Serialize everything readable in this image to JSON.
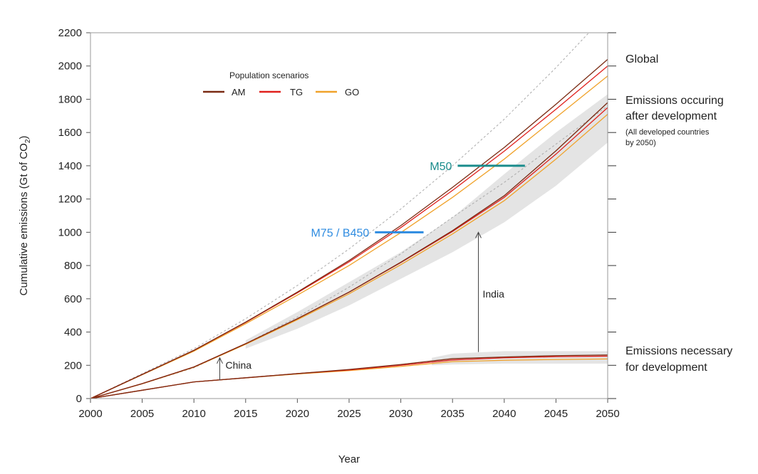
{
  "chart_data": {
    "type": "line",
    "xlabel": "Year",
    "ylabel": "Cumulative emissions (Gt of CO2)",
    "xlim": [
      2000,
      2050
    ],
    "ylim": [
      0,
      2200
    ],
    "x": [
      2000,
      2005,
      2010,
      2015,
      2020,
      2025,
      2030,
      2035,
      2040,
      2045,
      2050
    ],
    "xticks": [
      2000,
      2005,
      2010,
      2015,
      2020,
      2025,
      2030,
      2035,
      2040,
      2045,
      2050
    ],
    "yticks": [
      0,
      200,
      400,
      600,
      800,
      1000,
      1200,
      1400,
      1600,
      1800,
      2000,
      2200
    ],
    "legend": {
      "title": "Population scenarios",
      "placement": "top-left",
      "entries": [
        {
          "name": "AM",
          "color": "#7a2a12"
        },
        {
          "name": "TG",
          "color": "#e0201c"
        },
        {
          "name": "GO",
          "color": "#f0a22a"
        }
      ]
    },
    "groups": [
      {
        "name": "Global",
        "series": [
          {
            "name": "AM",
            "values": [
              0,
              145,
              290,
              460,
              640,
              830,
              1040,
              1270,
              1510,
              1770,
              2040
            ]
          },
          {
            "name": "TG",
            "values": [
              0,
              145,
              290,
              458,
              636,
              822,
              1028,
              1252,
              1488,
              1740,
              2000
            ]
          },
          {
            "name": "GO",
            "values": [
              0,
              143,
              285,
              450,
              622,
              800,
              998,
              1210,
              1440,
              1690,
              1940
            ]
          }
        ]
      },
      {
        "name": "Emissions occuring after development",
        "series": [
          {
            "name": "AM",
            "values": [
              0,
              90,
              190,
              330,
              480,
              640,
              820,
              1010,
              1220,
              1490,
              1780
            ]
          },
          {
            "name": "TG",
            "values": [
              0,
              90,
              190,
              330,
              480,
              640,
              818,
              1005,
              1210,
              1470,
              1750
            ]
          },
          {
            "name": "GO",
            "values": [
              0,
              89,
              188,
              326,
              474,
              630,
              805,
              990,
              1190,
              1440,
              1710
            ]
          }
        ]
      },
      {
        "name": "Emissions necessary for development",
        "series": [
          {
            "name": "AM",
            "values": [
              0,
              50,
              100,
              125,
              150,
              175,
              205,
              240,
              250,
              258,
              262
            ]
          },
          {
            "name": "TG",
            "values": [
              0,
              50,
              100,
              125,
              150,
              172,
              200,
              232,
              245,
              252,
              255
            ]
          },
          {
            "name": "GO",
            "values": [
              0,
              50,
              100,
              124,
              148,
              168,
              193,
              222,
              230,
              235,
              238
            ]
          }
        ]
      }
    ],
    "dashed": [
      {
        "values": [
          0,
          150,
          300,
          480,
          680,
          900,
          1140,
          1400,
          1680,
          1990,
          2320
        ]
      },
      {
        "values": [
          0,
          88,
          185,
          330,
          490,
          670,
          870,
          1090,
          1300,
          1530,
          1760
        ]
      }
    ],
    "bands": [
      {
        "x": [
          2015,
          2020,
          2025,
          2030,
          2035,
          2040,
          2045,
          2050
        ],
        "low": [
          300,
          420,
          560,
          720,
          880,
          1060,
          1280,
          1540
        ],
        "high": [
          350,
          520,
          700,
          880,
          1090,
          1350,
          1600,
          1830
        ]
      },
      {
        "x": [
          2033,
          2035,
          2040,
          2045,
          2050
        ],
        "low": [
          200,
          205,
          210,
          210,
          210
        ],
        "high": [
          245,
          270,
          285,
          285,
          285
        ]
      }
    ],
    "annotations": {
      "global": "Global",
      "after1": "Emissions occuring",
      "after2": "after development",
      "after3": "(All developed countries",
      "after4": "by 2050)",
      "nec1": "Emissions necessary",
      "nec2": "for development",
      "m50": {
        "label": "M50",
        "value": 1400,
        "from": 2035.5,
        "to": 2042,
        "color": "#1a8c8c"
      },
      "m75": {
        "label": "M75 / B450",
        "value": 1000,
        "from": 2027.5,
        "to": 2032.2,
        "color": "#2e8be0"
      },
      "china": {
        "label": "China",
        "x": 2012.5,
        "from": 110,
        "to": 245
      },
      "india": {
        "label": "India",
        "x": 2037.5,
        "from": 280,
        "to": 1000
      }
    }
  }
}
